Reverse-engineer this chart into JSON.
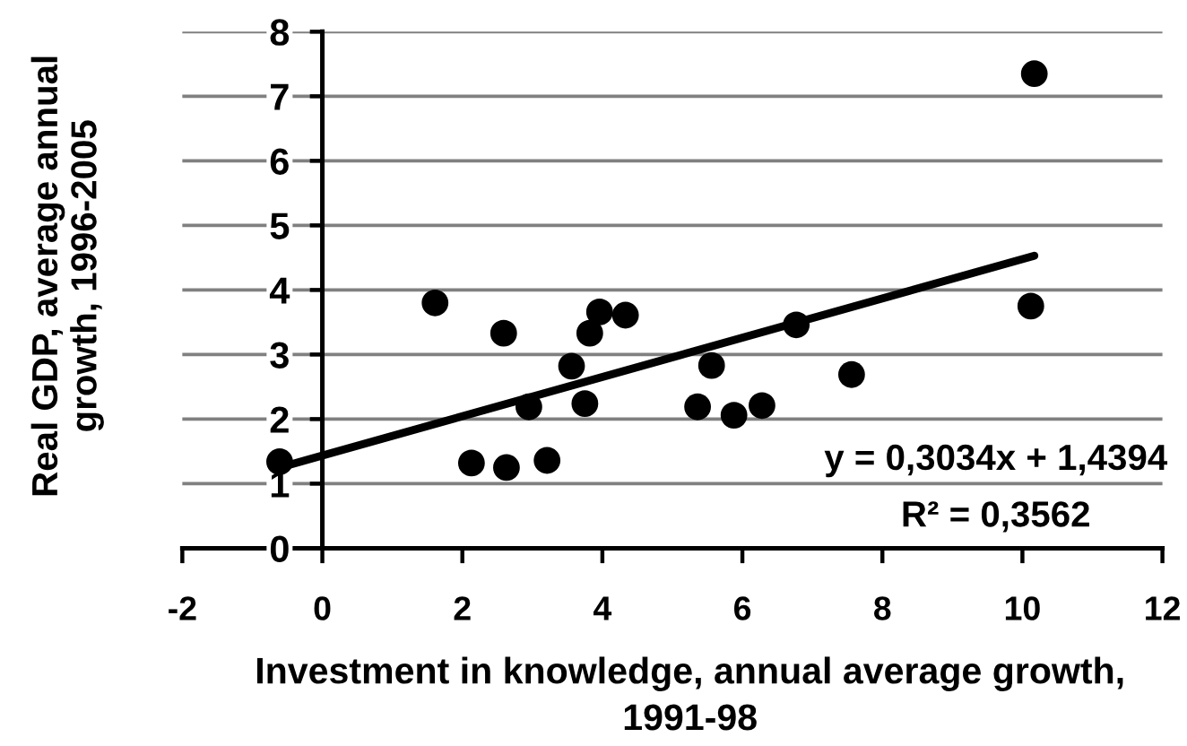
{
  "chart_data": {
    "type": "scatter",
    "xlabel": "Investment in knowledge, annual average growth,\n1991-98",
    "ylabel": "Real GDP, average annual\ngrowth, 1996-2005",
    "xlim": [
      -2,
      12
    ],
    "xticks": [
      -2,
      0,
      2,
      4,
      6,
      8,
      10,
      12
    ],
    "ylim": [
      0,
      8
    ],
    "yticks": [
      0,
      1,
      2,
      3,
      4,
      5,
      6,
      7,
      8
    ],
    "grid": "y",
    "annotations": [
      "y = 0,3034x + 1,4394",
      "R² = 0,3562"
    ],
    "series": [
      {
        "color": "#000000",
        "marker": "circle",
        "x": [
          -0.61,
          1.61,
          2.13,
          2.59,
          2.63,
          2.95,
          3.21,
          3.56,
          3.75,
          3.82,
          3.96,
          4.33,
          5.36,
          5.56,
          5.88,
          6.28,
          6.77,
          7.56,
          10.12,
          10.17
        ],
        "values": [
          1.34,
          3.8,
          1.32,
          3.33,
          1.25,
          2.19,
          1.36,
          2.82,
          2.24,
          3.33,
          3.66,
          3.61,
          2.19,
          2.83,
          2.06,
          2.21,
          3.46,
          2.69,
          3.75,
          7.35
        ]
      },
      {
        "type": "line",
        "color": "#000000",
        "marker": "none",
        "line_style": "solid",
        "x": [
          -0.61,
          10.17
        ],
        "values": [
          1.25,
          4.53
        ]
      }
    ]
  }
}
